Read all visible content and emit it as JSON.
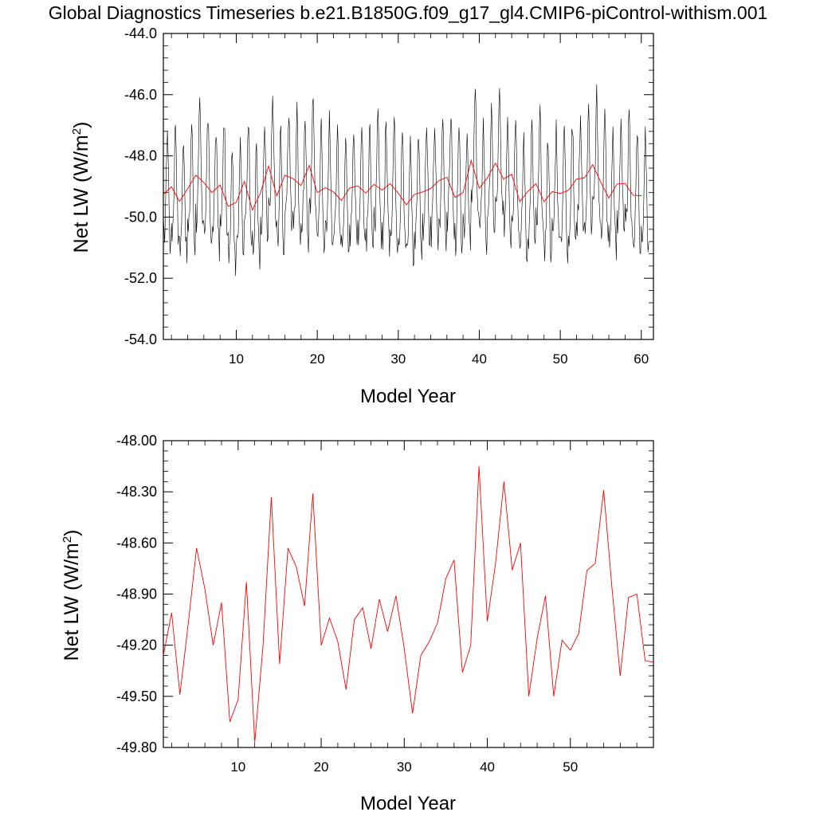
{
  "title": "Global Diagnostics Timeseries b.e21.B1850G.f09_g17_gl4.CMIP6-piControl-withism.001",
  "colors": {
    "monthly": "#000000",
    "annual": "#ff0000",
    "axes": "#000000"
  },
  "chart_data": [
    {
      "type": "line",
      "xlabel": "Model Year",
      "ylabel_main": "Net LW (W/m",
      "ylabel_sup": "2",
      "ylabel_close": ")",
      "xlim": [
        1.0,
        61.5
      ],
      "ylim": [
        -54.0,
        -44.0
      ],
      "xticks": [
        10,
        20,
        30,
        40,
        50,
        60
      ],
      "xtick_labels": [
        "10",
        "20",
        "30",
        "40",
        "50",
        "60"
      ],
      "yticks": [
        -54.0,
        -52.0,
        -50.0,
        -48.0,
        -46.0,
        -44.0
      ],
      "ytick_labels": [
        "-54.0",
        "-52.0",
        "-50.0",
        "-48.0",
        "-46.0",
        "-44.0"
      ],
      "grid": false,
      "series": [
        {
          "kind": "monthly",
          "x_start": 1.0,
          "x_step": 0.083333,
          "monthly_cycle": [
            -49.9,
            -50.3,
            -50.0,
            -49.4,
            -48.5,
            -47.2,
            -46.6,
            -47.4,
            -48.7,
            -49.7,
            -50.4,
            -50.7
          ],
          "notes": "black monthly timeseries with strong seasonal cycle around annual mean"
        },
        {
          "kind": "annual",
          "x": [
            1.0,
            2.0,
            3.0,
            4.0,
            5.0,
            6.0,
            7.0,
            8.0,
            9.0,
            10.0,
            11.0,
            12.0,
            13.0,
            14.0,
            15.0,
            16.0,
            17.0,
            18.0,
            19.0,
            20.0,
            21.0,
            22.0,
            23.0,
            24.0,
            25.0,
            26.0,
            27.0,
            28.0,
            29.0,
            30.0,
            31.0,
            32.0,
            33.0,
            34.0,
            35.0,
            36.0,
            37.0,
            38.0,
            39.0,
            40.0,
            41.0,
            42.0,
            43.0,
            44.0,
            45.0,
            46.0,
            47.0,
            48.0,
            49.0,
            50.0,
            51.0,
            52.0,
            53.0,
            54.0,
            55.0,
            56.0,
            57.0,
            58.0,
            59.0,
            60.0
          ],
          "values": [
            -49.26,
            -49.01,
            -49.49,
            -49.07,
            -48.63,
            -48.87,
            -49.2,
            -48.95,
            -49.65,
            -49.52,
            -48.83,
            -49.77,
            -49.2,
            -48.33,
            -49.31,
            -48.63,
            -48.74,
            -48.97,
            -48.31,
            -49.2,
            -49.04,
            -49.18,
            -49.46,
            -49.05,
            -48.98,
            -49.22,
            -48.93,
            -49.12,
            -48.91,
            -49.22,
            -49.6,
            -49.26,
            -49.18,
            -49.07,
            -48.81,
            -48.7,
            -49.36,
            -49.2,
            -48.15,
            -49.06,
            -48.72,
            -48.24,
            -48.76,
            -48.6,
            -49.5,
            -49.16,
            -48.91,
            -49.5,
            -49.17,
            -49.23,
            -49.13,
            -48.76,
            -48.72,
            -48.29,
            -48.86,
            -49.38,
            -48.92,
            -48.9,
            -49.29,
            -49.3
          ]
        }
      ]
    },
    {
      "type": "line",
      "xlabel": "Model Year",
      "ylabel_main": "Net LW (W/m",
      "ylabel_sup": "2",
      "ylabel_close": ")",
      "xlim": [
        1.0,
        60.0
      ],
      "ylim": [
        -49.8,
        -48.0
      ],
      "xticks": [
        10,
        20,
        30,
        40,
        50
      ],
      "xtick_labels": [
        "10",
        "20",
        "30",
        "40",
        "50"
      ],
      "yticks": [
        -49.8,
        -49.5,
        -49.2,
        -48.9,
        -48.6,
        -48.3,
        -48.0
      ],
      "ytick_labels": [
        "-49.80",
        "-49.50",
        "-49.20",
        "-48.90",
        "-48.60",
        "-48.30",
        "-48.00"
      ],
      "grid": false,
      "series": [
        {
          "kind": "annual",
          "x": [
            1.0,
            2.0,
            3.0,
            4.0,
            5.0,
            6.0,
            7.0,
            8.0,
            9.0,
            10.0,
            11.0,
            12.0,
            13.0,
            14.0,
            15.0,
            16.0,
            17.0,
            18.0,
            19.0,
            20.0,
            21.0,
            22.0,
            23.0,
            24.0,
            25.0,
            26.0,
            27.0,
            28.0,
            29.0,
            30.0,
            31.0,
            32.0,
            33.0,
            34.0,
            35.0,
            36.0,
            37.0,
            38.0,
            39.0,
            40.0,
            41.0,
            42.0,
            43.0,
            44.0,
            45.0,
            46.0,
            47.0,
            48.0,
            49.0,
            50.0,
            51.0,
            52.0,
            53.0,
            54.0,
            55.0,
            56.0,
            57.0,
            58.0,
            59.0,
            60.0
          ],
          "values": [
            -49.26,
            -49.01,
            -49.49,
            -49.07,
            -48.63,
            -48.87,
            -49.2,
            -48.95,
            -49.65,
            -49.52,
            -48.83,
            -49.77,
            -49.2,
            -48.33,
            -49.31,
            -48.63,
            -48.74,
            -48.97,
            -48.31,
            -49.2,
            -49.04,
            -49.18,
            -49.46,
            -49.05,
            -48.98,
            -49.22,
            -48.93,
            -49.12,
            -48.91,
            -49.22,
            -49.6,
            -49.26,
            -49.18,
            -49.07,
            -48.81,
            -48.7,
            -49.36,
            -49.2,
            -48.15,
            -49.06,
            -48.72,
            -48.24,
            -48.76,
            -48.6,
            -49.5,
            -49.16,
            -48.91,
            -49.5,
            -49.17,
            -49.23,
            -49.13,
            -48.76,
            -48.72,
            -48.29,
            -48.86,
            -49.38,
            -48.92,
            -48.9,
            -49.29,
            -49.3
          ]
        }
      ]
    }
  ]
}
